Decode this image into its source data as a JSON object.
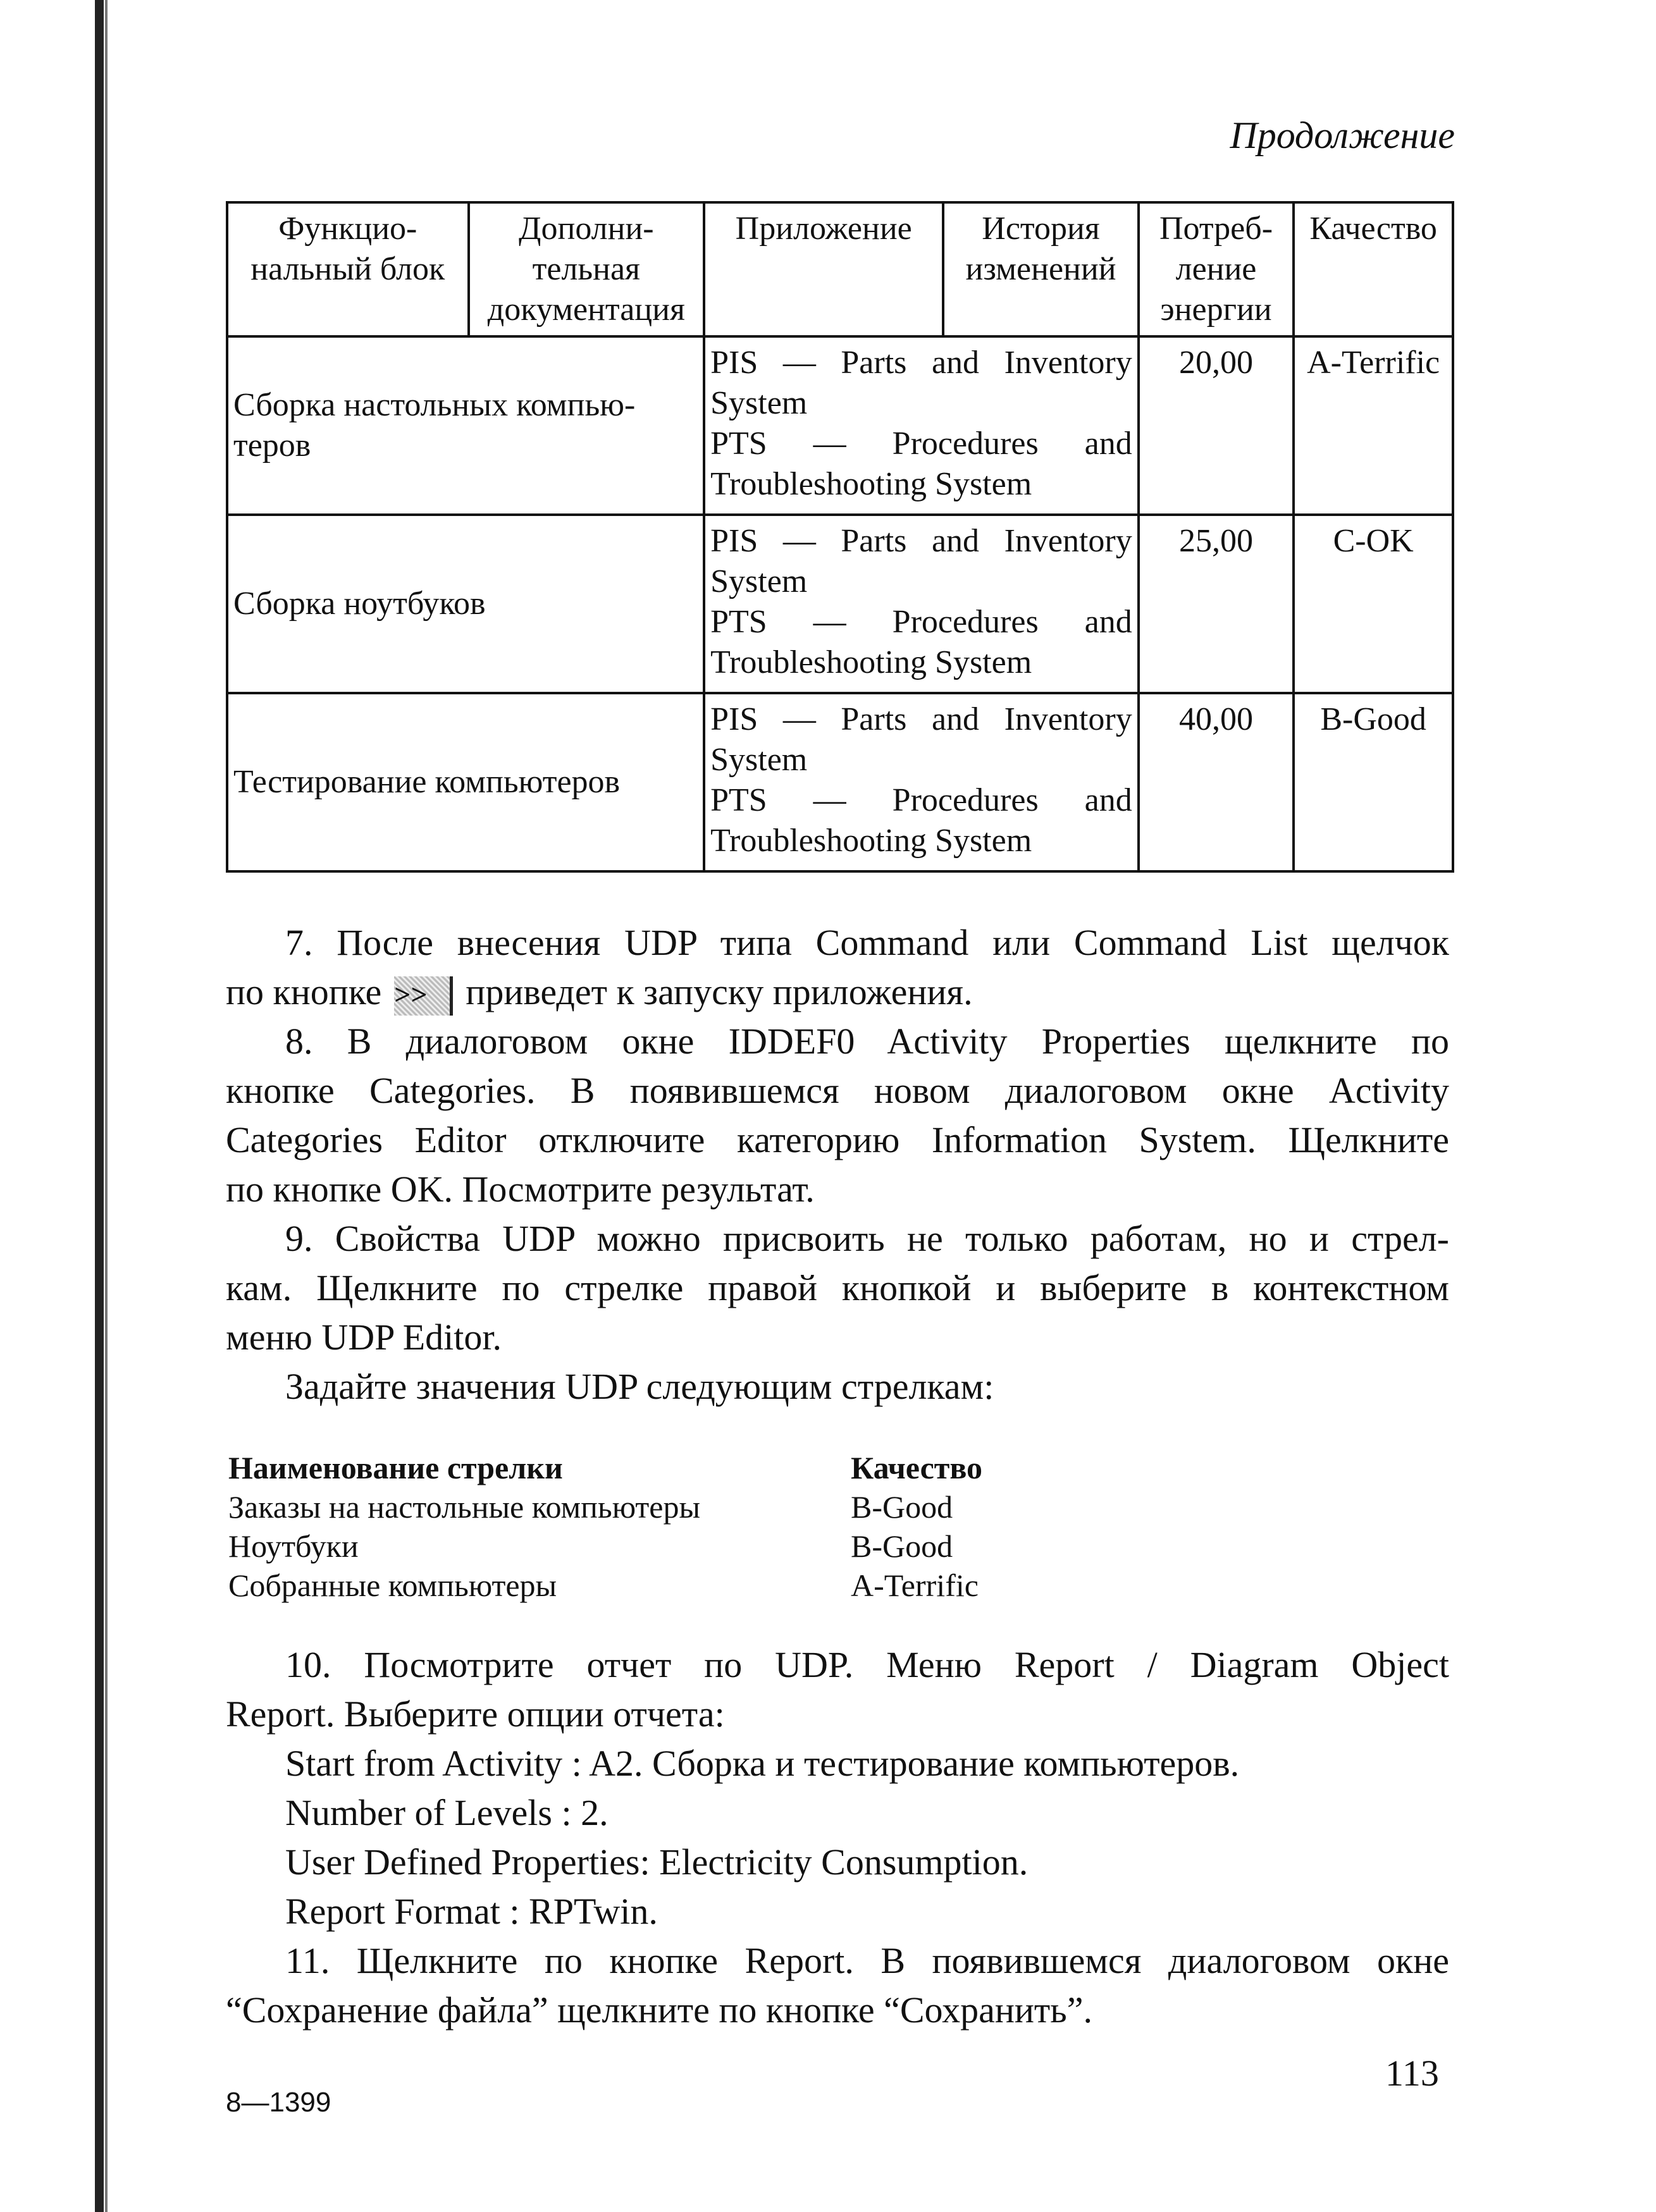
{
  "continuation": "Продолжение",
  "table": {
    "headers": [
      "Функцио-нальный блок",
      "Дополни-тельная документация",
      "Приложение",
      "История изменений",
      "Потреб-ление энергии",
      "Качество"
    ],
    "rows": [
      {
        "block": "Сборка настольных компью-теров",
        "app_lines": [
          "PIS — Parts and Inventory System",
          "PTS — Procedures and Troubleshooting System"
        ],
        "energy": "20,00",
        "quality": "A-Terrific"
      },
      {
        "block": "Сборка ноутбуков",
        "app_lines": [
          "PIS — Parts and Inventory System",
          "PTS — Procedures and Troubleshooting System"
        ],
        "energy": "25,00",
        "quality": "C-OK"
      },
      {
        "block": "Тестирование компьютеров",
        "app_lines": [
          "PIS — Parts and Inventory System",
          "PTS — Procedures and Troubleshooting System"
        ],
        "energy": "40,00",
        "quality": "B-Good"
      }
    ]
  },
  "para7": {
    "line1": "7. После внесения UDP типа Command или Command List щелчок",
    "line2a": "по кнопке",
    "button": ">>",
    "line2b": "приведет к запуску приложения."
  },
  "para8": [
    "8. В диалоговом окне IDDEF0 Activity Properties щелкните по",
    "кнопке Categories. В появившемся новом диалоговом окне Activity",
    "Categories Editor отключите категорию Information System. Щелкните",
    "по кнопке OK. Посмотрите результат."
  ],
  "para9": [
    "9. Свойства UDP можно присвоить не только работам, но и стрел-",
    "кам. Щелкните по стрелке правой кнопкой и выберите в контекстном",
    "меню UDP Editor."
  ],
  "set_values": "Задайте значения UDP следующим стрелкам:",
  "arrows": {
    "headers": [
      "Наименование стрелки",
      "Качество"
    ],
    "rows": [
      [
        "Заказы на настольные компьютеры",
        "B-Good"
      ],
      [
        "Ноутбуки",
        "B-Good"
      ],
      [
        "Собранные компьютеры",
        "A-Terrific"
      ]
    ]
  },
  "para10": [
    "10. Посмотрите отчет по UDP. Меню Report / Diagram Object",
    "Report. Выберите опции отчета:"
  ],
  "options": [
    "Start from Activity : A2. Сборка и тестирование компьютеров.",
    "Number of Levels : 2.",
    "User Defined Properties: Electricity Consumption.",
    "Report Format : RPTwin."
  ],
  "para11": [
    "11. Щелкните по кнопке Report. В появившемся диалоговом окне",
    "“Сохранение файла” щелкните по кнопке “Сохранить”."
  ],
  "page_number": "113",
  "signature": "8—1399"
}
